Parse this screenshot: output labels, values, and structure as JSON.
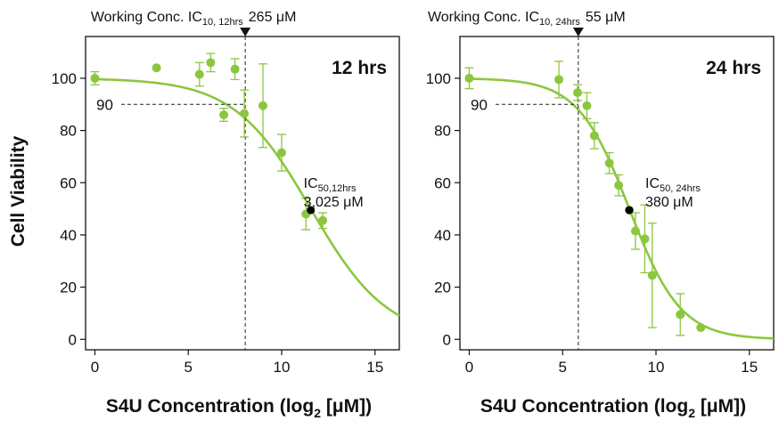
{
  "colors": {
    "fit": "#8cc63f",
    "point": "#8cc63f",
    "ic50_marker": "#000000",
    "axis": "#111111"
  },
  "figure": {
    "ylabel": "Cell Viability",
    "xlabel": "S4U Concentration (log",
    "xlabel_sub": "2",
    "xlabel_tail": " [μM])"
  },
  "chart_data": [
    {
      "type": "scatter",
      "panel_label": "12 hrs",
      "xlim": [
        -0.5,
        16.3
      ],
      "ylim": [
        -4,
        116
      ],
      "xticks": [
        0,
        5,
        10,
        15
      ],
      "yticks": [
        0,
        20,
        40,
        60,
        80,
        100
      ],
      "grid": false,
      "fit": {
        "ic50_log2": 11.56,
        "hill": 0.7
      },
      "points": [
        {
          "x": 0,
          "y": 100,
          "err": 2.5
        },
        {
          "x": 3.3,
          "y": 104,
          "err": 0
        },
        {
          "x": 5.6,
          "y": 101.5,
          "err": 4.5
        },
        {
          "x": 6.2,
          "y": 106,
          "err": 3.5
        },
        {
          "x": 6.9,
          "y": 86,
          "err": 2.5
        },
        {
          "x": 7.5,
          "y": 103.5,
          "err": 4
        },
        {
          "x": 8.0,
          "y": 86.5,
          "err": 9
        },
        {
          "x": 9.0,
          "y": 89.5,
          "err": 16
        },
        {
          "x": 10.0,
          "y": 71.5,
          "err": 7
        },
        {
          "x": 11.3,
          "y": 48,
          "err": 6
        },
        {
          "x": 12.2,
          "y": 45.5,
          "err": 3
        }
      ],
      "ic50_point": {
        "x": 11.56,
        "y": 49.5
      },
      "ic10_ref": {
        "x": 8.05,
        "y": 90,
        "ylabel": "90"
      },
      "working_conc": {
        "prefix": "Working Conc. IC",
        "sub": "10, 12hrs",
        "value": "265 μM"
      },
      "ic50_annot": {
        "prefix": "IC",
        "sub": "50,12hrs",
        "value": "3,025 μM"
      }
    },
    {
      "type": "scatter",
      "panel_label": "24 hrs",
      "xlim": [
        -0.5,
        16.3
      ],
      "ylim": [
        -4,
        116
      ],
      "xticks": [
        0,
        5,
        10,
        15
      ],
      "yticks": [
        0,
        20,
        40,
        60,
        80,
        100
      ],
      "grid": false,
      "fit": {
        "ic50_log2": 8.57,
        "hill": 1.05
      },
      "points": [
        {
          "x": 0,
          "y": 100,
          "err": 4
        },
        {
          "x": 4.8,
          "y": 99.5,
          "err": 7
        },
        {
          "x": 5.8,
          "y": 94.5,
          "err": 3
        },
        {
          "x": 6.3,
          "y": 89.5,
          "err": 5
        },
        {
          "x": 6.7,
          "y": 78,
          "err": 5
        },
        {
          "x": 7.5,
          "y": 67.5,
          "err": 4
        },
        {
          "x": 8.0,
          "y": 59,
          "err": 4
        },
        {
          "x": 8.57,
          "y": 49.5,
          "err": 0
        },
        {
          "x": 8.9,
          "y": 41.5,
          "err": 7
        },
        {
          "x": 9.4,
          "y": 38.5,
          "err": 13
        },
        {
          "x": 9.8,
          "y": 24.5,
          "err": 20
        },
        {
          "x": 11.3,
          "y": 9.5,
          "err": 8
        },
        {
          "x": 12.4,
          "y": 4.5,
          "err": 0
        }
      ],
      "ic50_point": {
        "x": 8.57,
        "y": 49.5
      },
      "ic10_ref": {
        "x": 5.84,
        "y": 90,
        "ylabel": "90"
      },
      "working_conc": {
        "prefix": "Working Conc. IC",
        "sub": "10, 24hrs",
        "value": "55 μM"
      },
      "ic50_annot": {
        "prefix": "IC",
        "sub": "50, 24hrs",
        "value": "380 μM"
      }
    }
  ]
}
